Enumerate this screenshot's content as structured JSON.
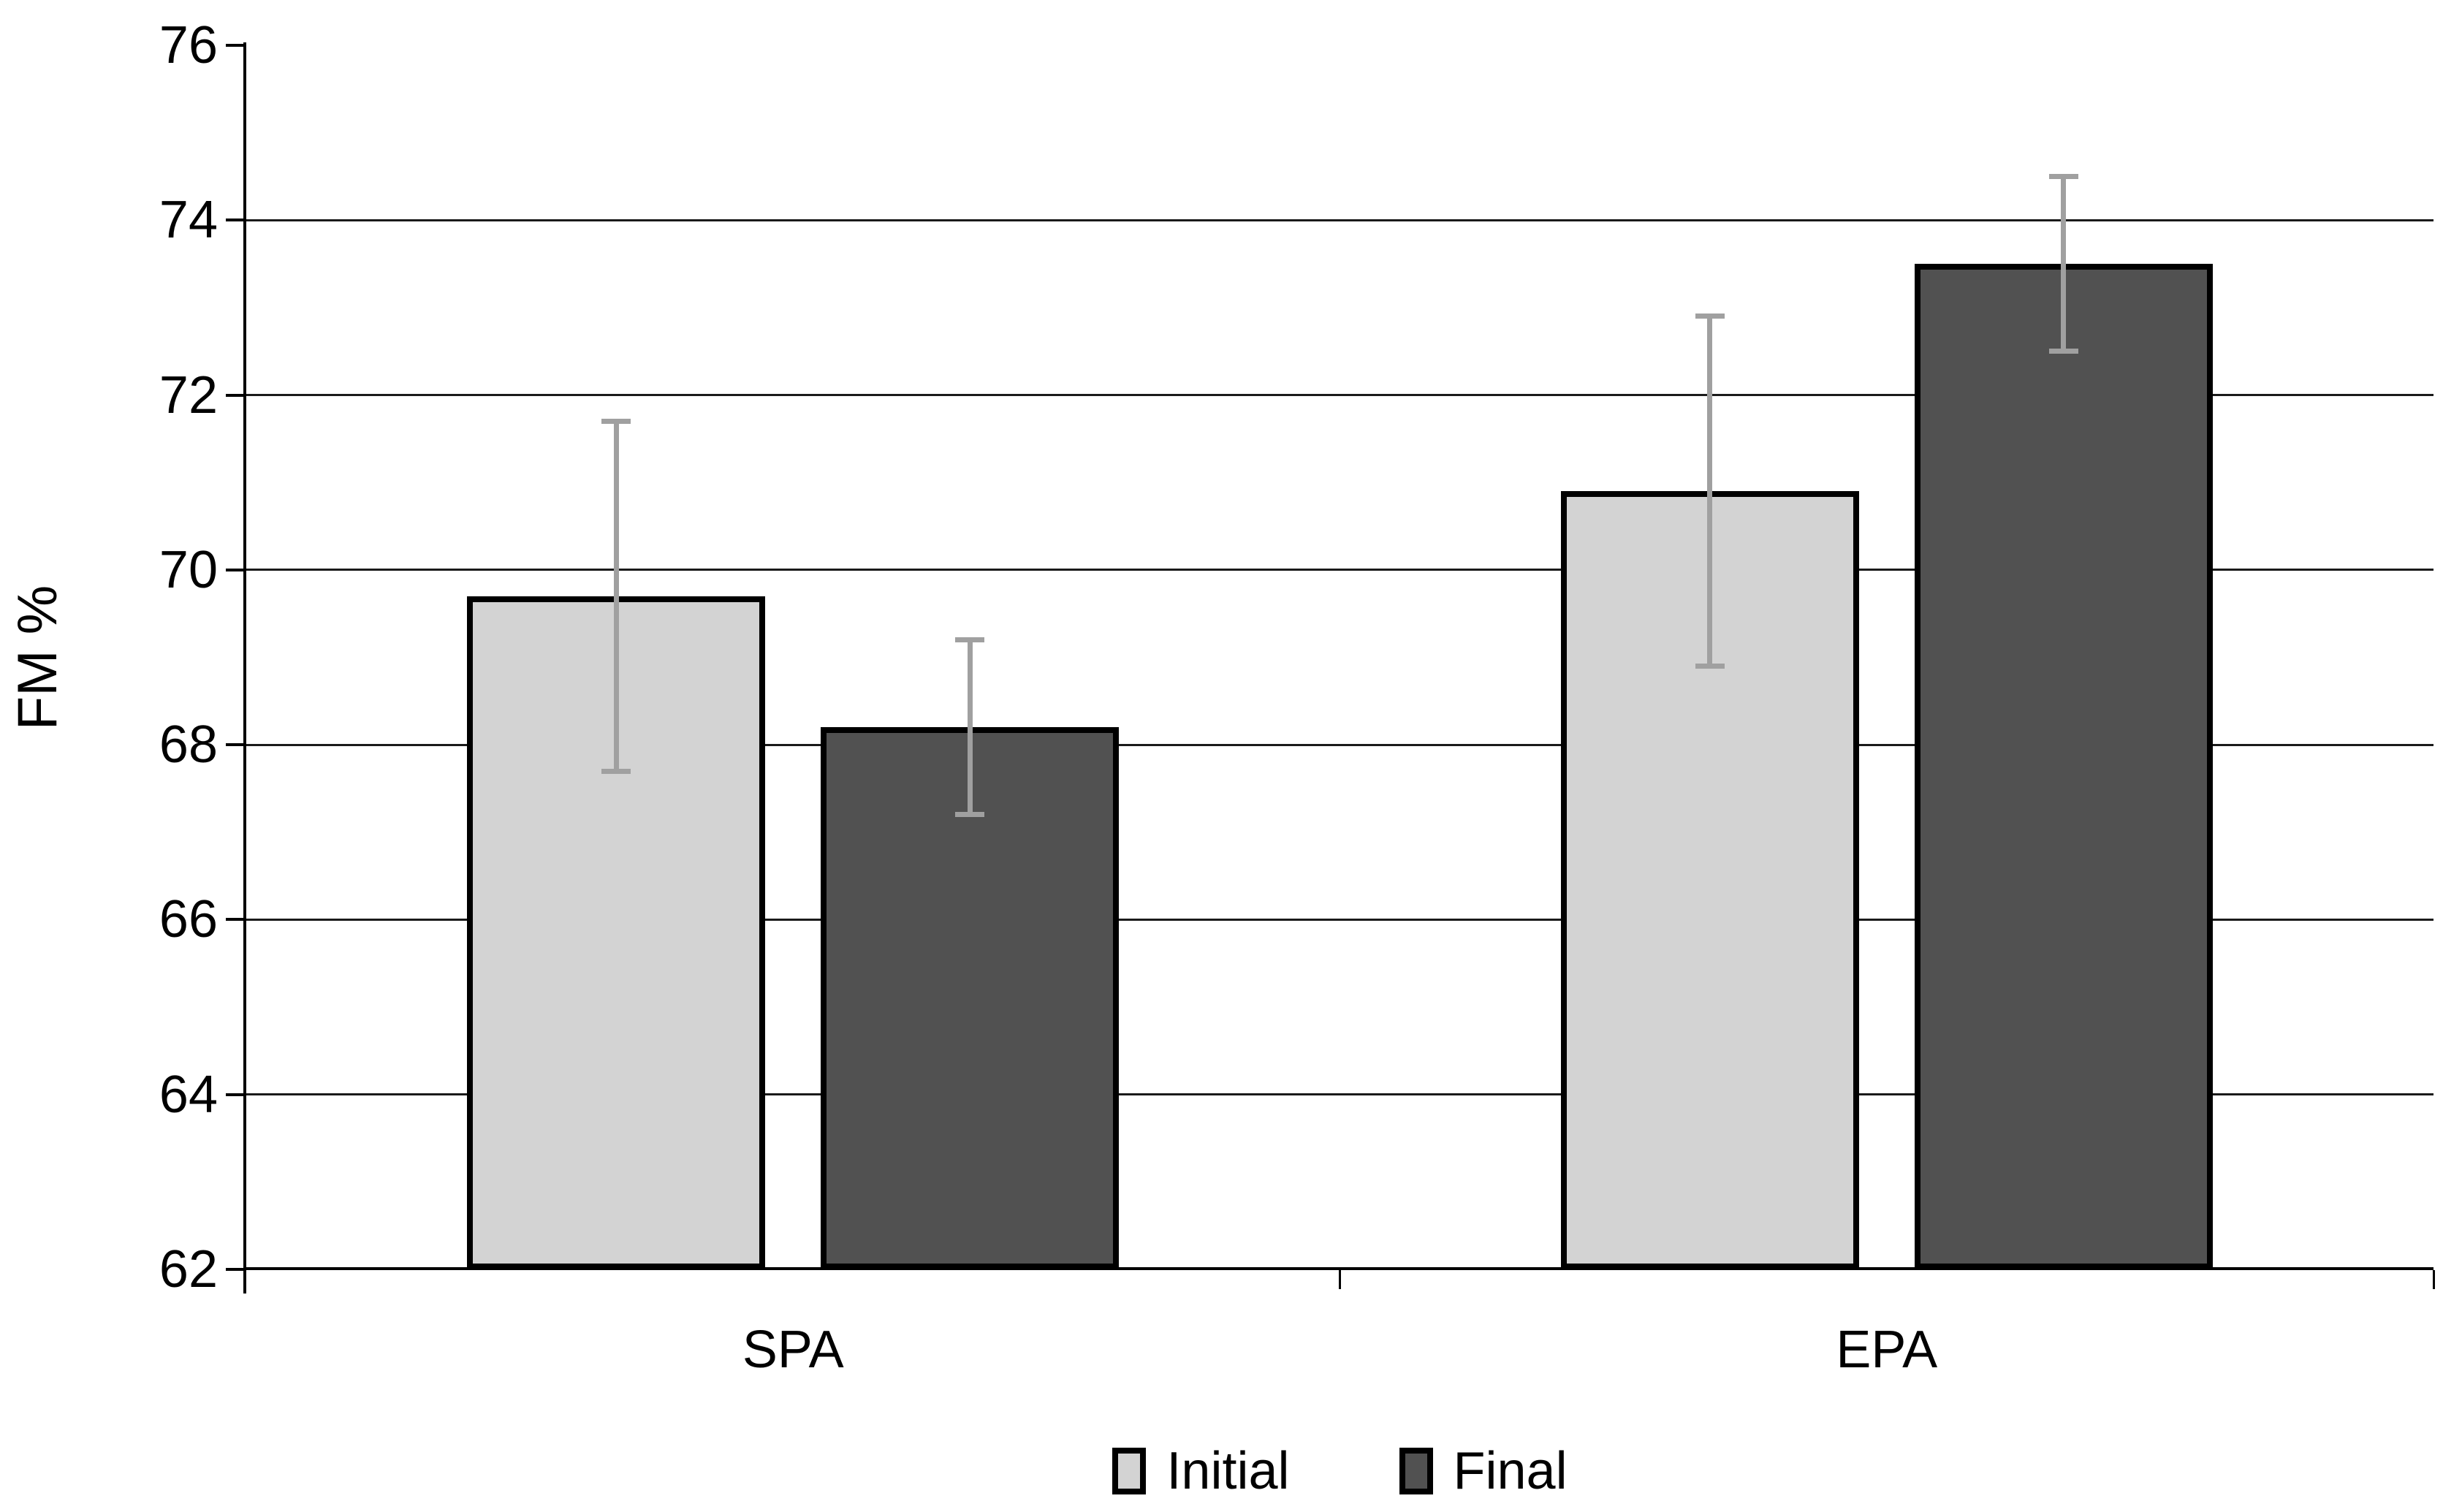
{
  "chart_data": {
    "type": "bar",
    "title": "",
    "xlabel": "",
    "ylabel": "FM %",
    "ylim": [
      62,
      76
    ],
    "ytick_step": 2,
    "grid": "horizontal-major",
    "legend_position": "bottom",
    "background": "#ffffff",
    "axis_color": "#000000",
    "bar_border_color": "#000000",
    "error_bar_color": "#a0a0a0",
    "categories": [
      "SPA",
      "EPA"
    ],
    "series": [
      {
        "name": "Initial",
        "color": "#d3d3d3",
        "values": [
          69.7,
          70.9
        ],
        "errors": [
          2.0,
          2.0
        ]
      },
      {
        "name": "Final",
        "color": "#515151",
        "values": [
          68.2,
          73.5
        ],
        "errors": [
          1.0,
          1.0
        ]
      }
    ]
  }
}
